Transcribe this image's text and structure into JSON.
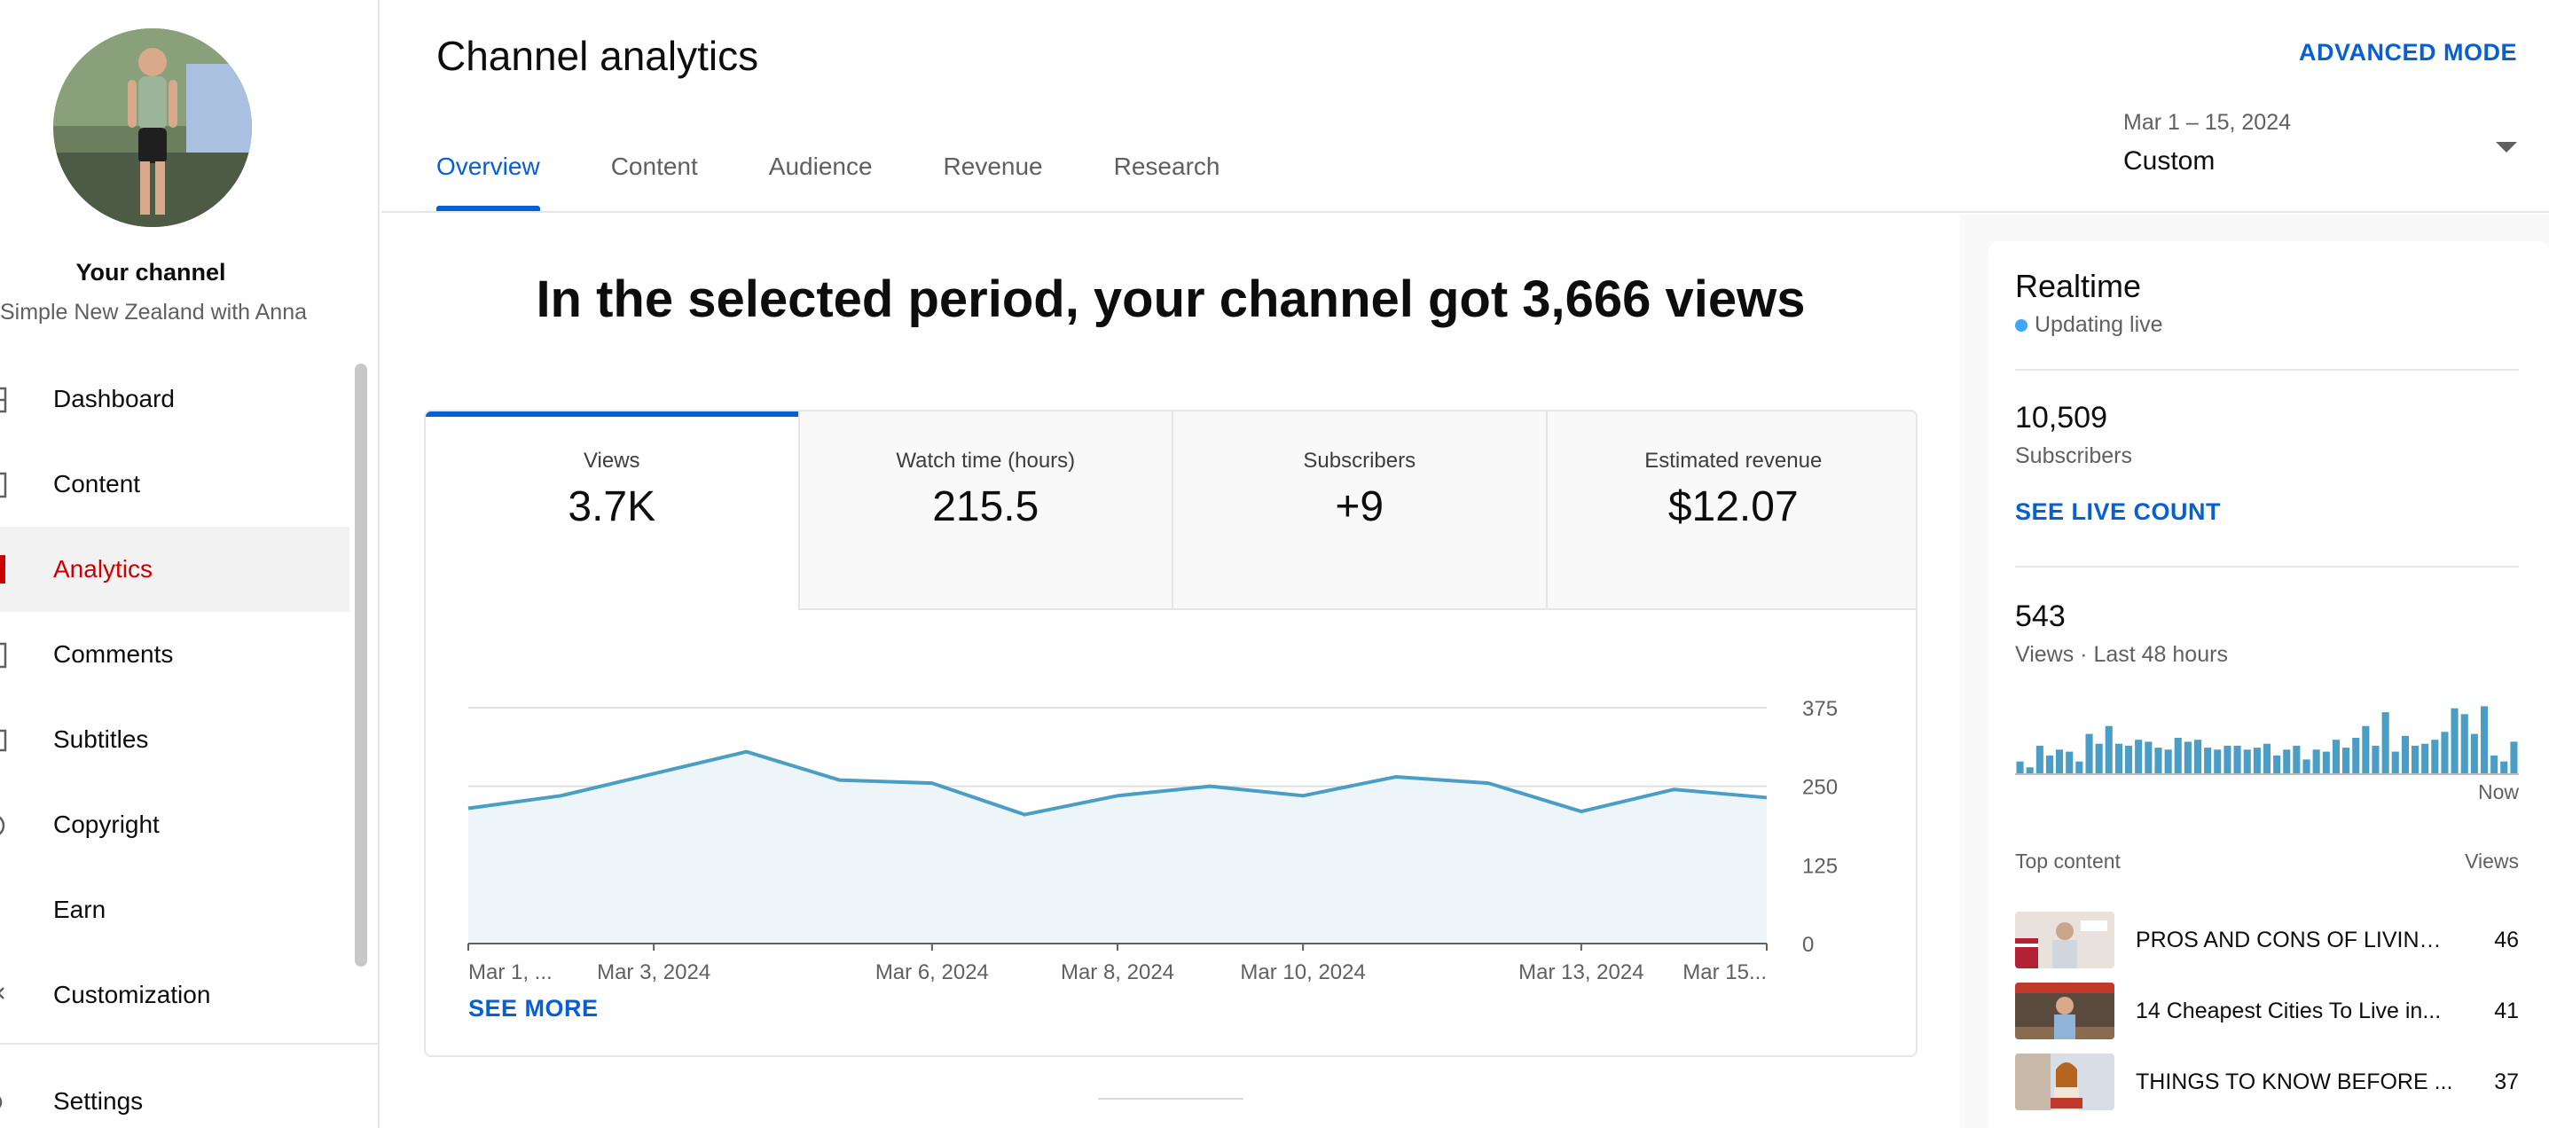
{
  "sidebar": {
    "channel_title": "Your channel",
    "channel_name": "Simple New Zealand with Anna",
    "items": [
      {
        "label": "Dashboard",
        "icon": "dashboard-icon"
      },
      {
        "label": "Content",
        "icon": "content-icon"
      },
      {
        "label": "Analytics",
        "icon": "analytics-icon",
        "active": true
      },
      {
        "label": "Comments",
        "icon": "comments-icon"
      },
      {
        "label": "Subtitles",
        "icon": "subtitles-icon"
      },
      {
        "label": "Copyright",
        "icon": "copyright-icon"
      },
      {
        "label": "Earn",
        "icon": "earn-icon"
      },
      {
        "label": "Customization",
        "icon": "customization-icon"
      },
      {
        "label": "Settings",
        "icon": "settings-icon"
      }
    ]
  },
  "header": {
    "title": "Channel analytics",
    "advanced_mode": "ADVANCED MODE",
    "tabs": [
      {
        "label": "Overview",
        "active": true
      },
      {
        "label": "Content"
      },
      {
        "label": "Audience"
      },
      {
        "label": "Revenue"
      },
      {
        "label": "Research"
      }
    ],
    "date_range": {
      "caption": "Mar 1 – 15, 2024",
      "value": "Custom"
    }
  },
  "main": {
    "headline": "In the selected period, your channel got 3,666 views",
    "metrics": [
      {
        "label": "Views",
        "value": "3.7K",
        "active": true
      },
      {
        "label": "Watch time (hours)",
        "value": "215.5"
      },
      {
        "label": "Subscribers",
        "value": "+9"
      },
      {
        "label": "Estimated revenue",
        "value": "$12.07"
      }
    ],
    "see_more": "SEE MORE"
  },
  "chart_data": {
    "type": "area",
    "series": [
      {
        "values": [
          215,
          235,
          270,
          305,
          260,
          255,
          205,
          235,
          250,
          235,
          265,
          255,
          210,
          245,
          232
        ]
      }
    ],
    "x_tick_labels": [
      {
        "label": "Mar 1, ...",
        "index": 0
      },
      {
        "label": "Mar 3, 2024",
        "index": 2
      },
      {
        "label": "Mar 6, 2024",
        "index": 5
      },
      {
        "label": "Mar 8, 2024",
        "index": 7
      },
      {
        "label": "Mar 10, 2024",
        "index": 9
      },
      {
        "label": "Mar 13, 2024",
        "index": 12
      },
      {
        "label": "Mar 15...",
        "index": 14
      }
    ],
    "y_ticks": [
      "0",
      "125",
      "250",
      "375"
    ],
    "ylim": [
      0,
      375
    ],
    "grid": true,
    "colors": {
      "line": "#4a9ec6",
      "fill": "#eef5f8",
      "grid": "#e0e0e0",
      "axis": "#606060"
    }
  },
  "realtime": {
    "title": "Realtime",
    "live_label": "Updating live",
    "subscribers_value": "10,509",
    "subscribers_label": "Subscribers",
    "see_live_count": "SEE LIVE COUNT",
    "views_value": "543",
    "views_label": "Views · Last 48 hours",
    "now_label": "Now",
    "hourly_views": [
      6,
      3,
      14,
      9,
      12,
      11,
      6,
      20,
      15,
      24,
      15,
      14,
      17,
      16,
      13,
      12,
      18,
      16,
      17,
      13,
      12,
      14,
      14,
      12,
      13,
      15,
      9,
      12,
      14,
      7,
      12,
      11,
      17,
      13,
      18,
      24,
      14,
      31,
      11,
      19,
      14,
      15,
      17,
      21,
      33,
      30,
      20,
      34,
      9,
      6,
      16
    ],
    "top_content_label": "Top content",
    "views_column_label": "Views",
    "top_content": [
      {
        "title": "PROS AND CONS OF LIVING ...",
        "views": "46"
      },
      {
        "title": "14 Cheapest Cities To Live in...",
        "views": "41"
      },
      {
        "title": "THINGS TO KNOW BEFORE ...",
        "views": "37"
      }
    ]
  }
}
